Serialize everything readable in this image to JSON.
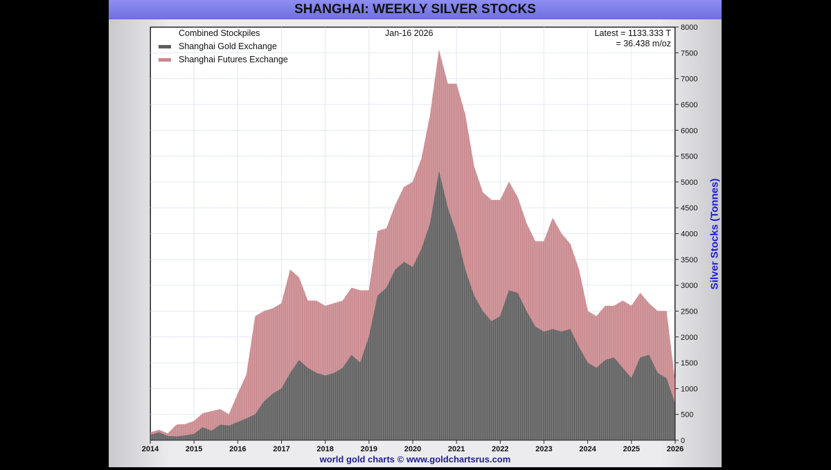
{
  "page": {
    "title": "SHANGHAI: WEEKLY SILVER STOCKS",
    "footer": "world gold charts © www.goldchartsrus.com"
  },
  "chart_data": {
    "type": "area",
    "title": "SHANGHAI: WEEKLY SILVER STOCKS",
    "ylabel": "Silver Stocks (Tonnes)",
    "ylim": [
      0,
      8000
    ],
    "yticks": [
      0,
      500,
      1000,
      1500,
      2000,
      2500,
      3000,
      3500,
      4000,
      4500,
      5000,
      5500,
      6000,
      6500,
      7000,
      7500,
      8000
    ],
    "xlim": [
      2014,
      2026
    ],
    "xticks": [
      2014,
      2015,
      2016,
      2017,
      2018,
      2019,
      2020,
      2021,
      2022,
      2023,
      2024,
      2025,
      2026
    ],
    "grid": true,
    "stacked": true,
    "legend_position": "top-left",
    "legend_header": "Combined Stockpiles",
    "date_label": "Jan-16  2026",
    "latest_line1": "Latest = 1133.333 T",
    "latest_line2": "= 36.438 m/oz",
    "colors": {
      "sge": "#5e5e5e",
      "shfe": "#c9878d"
    },
    "series": [
      {
        "name": "Shanghai Gold Exchange",
        "x": [
          2014.0,
          2014.2,
          2014.4,
          2014.6,
          2014.8,
          2015.0,
          2015.2,
          2015.4,
          2015.6,
          2015.8,
          2016.0,
          2016.2,
          2016.4,
          2016.6,
          2016.8,
          2017.0,
          2017.2,
          2017.4,
          2017.6,
          2017.8,
          2018.0,
          2018.2,
          2018.4,
          2018.6,
          2018.8,
          2019.0,
          2019.2,
          2019.4,
          2019.6,
          2019.8,
          2020.0,
          2020.2,
          2020.4,
          2020.6,
          2020.8,
          2021.0,
          2021.2,
          2021.4,
          2021.6,
          2021.8,
          2022.0,
          2022.2,
          2022.4,
          2022.6,
          2022.8,
          2023.0,
          2023.2,
          2023.4,
          2023.6,
          2023.8,
          2024.0,
          2024.2,
          2024.4,
          2024.6,
          2024.8,
          2025.0,
          2025.2,
          2025.4,
          2025.6,
          2025.8,
          2026.0
        ],
        "y": [
          100,
          150,
          80,
          70,
          90,
          120,
          250,
          180,
          300,
          280,
          350,
          420,
          500,
          750,
          900,
          1000,
          1300,
          1550,
          1400,
          1300,
          1250,
          1300,
          1400,
          1650,
          1500,
          2000,
          2800,
          2950,
          3300,
          3450,
          3350,
          3700,
          4200,
          5200,
          4500,
          4000,
          3300,
          2800,
          2500,
          2300,
          2400,
          2900,
          2850,
          2500,
          2200,
          2100,
          2150,
          2100,
          2150,
          1800,
          1500,
          1400,
          1550,
          1600,
          1400,
          1200,
          1600,
          1650,
          1300,
          1200,
          700
        ]
      },
      {
        "name": "Shanghai Futures Exchange",
        "x": [
          2014.0,
          2014.2,
          2014.4,
          2014.6,
          2014.8,
          2015.0,
          2015.2,
          2015.4,
          2015.6,
          2015.8,
          2016.0,
          2016.2,
          2016.4,
          2016.6,
          2016.8,
          2017.0,
          2017.2,
          2017.4,
          2017.6,
          2017.8,
          2018.0,
          2018.2,
          2018.4,
          2018.6,
          2018.8,
          2019.0,
          2019.2,
          2019.4,
          2019.6,
          2019.8,
          2020.0,
          2020.2,
          2020.4,
          2020.6,
          2020.8,
          2021.0,
          2021.2,
          2021.4,
          2021.6,
          2021.8,
          2022.0,
          2022.2,
          2022.4,
          2022.6,
          2022.8,
          2023.0,
          2023.2,
          2023.4,
          2023.6,
          2023.8,
          2024.0,
          2024.2,
          2024.4,
          2024.6,
          2024.8,
          2025.0,
          2025.2,
          2025.4,
          2025.6,
          2025.8,
          2026.0
        ],
        "y": [
          50,
          50,
          50,
          230,
          220,
          250,
          270,
          380,
          300,
          220,
          550,
          850,
          1900,
          1750,
          1650,
          1650,
          2000,
          1600,
          1300,
          1400,
          1350,
          1350,
          1300,
          1300,
          1400,
          900,
          1250,
          1150,
          1250,
          1450,
          1650,
          1750,
          2100,
          2350,
          2400,
          2900,
          3000,
          2500,
          2300,
          2350,
          2250,
          2100,
          1850,
          1700,
          1650,
          1750,
          2150,
          1900,
          1650,
          1500,
          1000,
          1000,
          1050,
          1000,
          1300,
          1400,
          1250,
          1000,
          1200,
          1300,
          400
        ]
      }
    ]
  }
}
